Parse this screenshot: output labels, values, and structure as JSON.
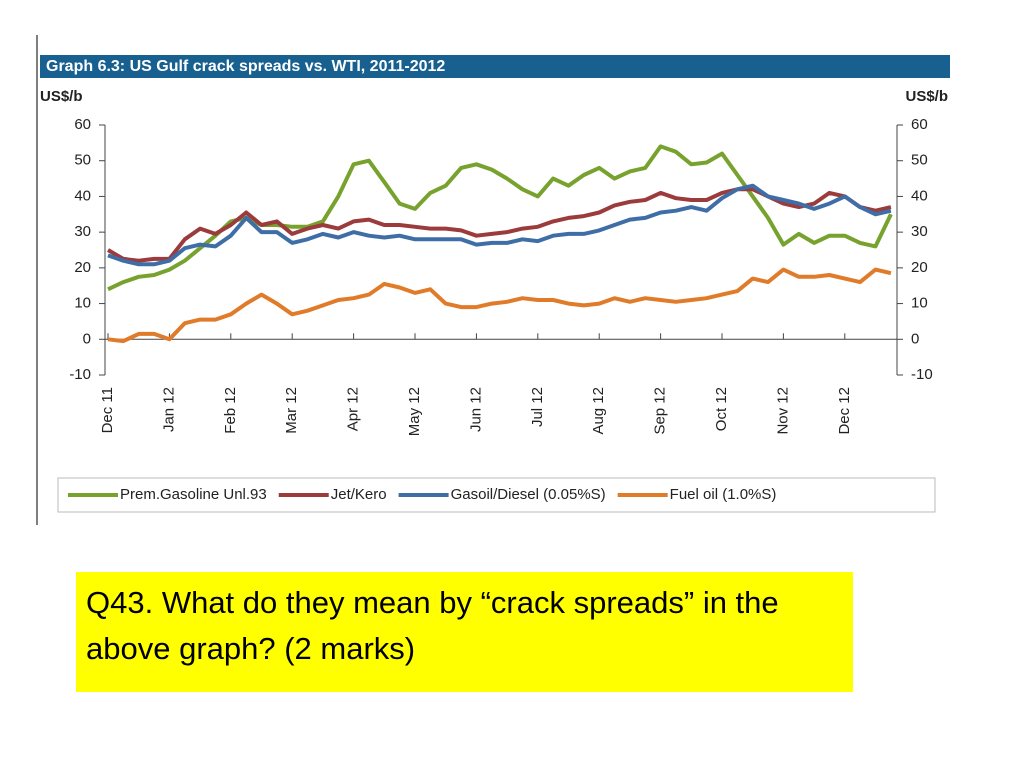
{
  "chart_data": {
    "type": "line",
    "title": "Graph 6.3: US Gulf crack spreads vs. WTI, 2011-2012",
    "ylabel": "US$/b",
    "y2label": "US$/b",
    "categories": [
      "Dec 11",
      null,
      null,
      null,
      "Jan 12",
      null,
      null,
      null,
      "Feb 12",
      null,
      null,
      null,
      "Mar 12",
      null,
      null,
      null,
      "Apr 12",
      null,
      null,
      null,
      "May 12",
      null,
      null,
      null,
      "Jun 12",
      null,
      null,
      null,
      "Jul 12",
      null,
      null,
      null,
      "Aug 12",
      null,
      null,
      null,
      "Sep 12",
      null,
      null,
      null,
      "Oct 12",
      null,
      null,
      null,
      "Nov 12",
      null,
      null,
      null,
      "Dec 12",
      null,
      null,
      null
    ],
    "ylim": [
      -10,
      60
    ],
    "yticks": [
      -10,
      0,
      10,
      20,
      30,
      40,
      50,
      60
    ],
    "y2lim": [
      -10,
      60
    ],
    "y2ticks": [
      -10,
      0,
      10,
      20,
      30,
      40,
      50,
      60
    ],
    "grid": false,
    "legend": "bottom",
    "series": [
      {
        "name": "Prem.Gasoline Unl.93",
        "color": "#77a22d",
        "values": [
          14,
          16,
          17.5,
          18,
          19.5,
          22,
          25.5,
          29,
          33,
          34,
          32,
          32,
          31.5,
          31.5,
          33,
          40,
          49,
          50,
          44,
          38,
          36.5,
          41,
          43,
          48,
          49,
          47.5,
          45,
          42,
          40,
          45,
          43,
          46,
          48,
          45,
          47,
          48,
          54,
          52.5,
          49,
          49.5,
          52,
          46,
          40,
          34,
          26.5,
          29.5,
          27,
          29,
          29,
          27,
          26,
          35
        ]
      },
      {
        "name": "Jet/Kero",
        "color": "#9b3b3b",
        "values": [
          25,
          22.5,
          22,
          22.5,
          22.5,
          28,
          31,
          29.5,
          32,
          35.5,
          32,
          33,
          29.5,
          31,
          32,
          31,
          33,
          33.5,
          32,
          32,
          31.5,
          31,
          31,
          30.5,
          29,
          29.5,
          30,
          31,
          31.5,
          33,
          34,
          34.5,
          35.5,
          37.5,
          38.5,
          39,
          41,
          39.5,
          39,
          39,
          41,
          42,
          42,
          40,
          38,
          37,
          38,
          41,
          40,
          37,
          36,
          37
        ]
      },
      {
        "name": "Gasoil/Diesel (0.05%S)",
        "color": "#3f6ea7",
        "values": [
          23.5,
          22,
          21,
          21,
          22,
          25.5,
          26.5,
          26,
          29,
          34,
          30,
          30,
          27,
          28,
          29.5,
          28.5,
          30,
          29,
          28.5,
          29,
          28,
          28,
          28,
          28,
          26.5,
          27,
          27,
          28,
          27.5,
          29,
          29.5,
          29.5,
          30.5,
          32,
          33.5,
          34,
          35.5,
          36,
          37,
          36,
          39.5,
          42,
          43,
          40,
          39,
          38,
          36.5,
          38,
          40,
          37,
          35,
          36
        ]
      },
      {
        "name": "Fuel oil (1.0%S)",
        "color": "#e07b2a",
        "values": [
          0,
          -0.5,
          1.5,
          1.5,
          0,
          4.5,
          5.5,
          5.5,
          7,
          10,
          12.5,
          10,
          7,
          8,
          9.5,
          11,
          11.5,
          12.5,
          15.5,
          14.5,
          13,
          14,
          10,
          9,
          9,
          10,
          10.5,
          11.5,
          11,
          11,
          10,
          9.5,
          10,
          11.5,
          10.5,
          11.5,
          11,
          10.5,
          11,
          11.5,
          12.5,
          13.5,
          17,
          16,
          19.5,
          17.5,
          17.5,
          18,
          17,
          16,
          19.5,
          18.5
        ]
      }
    ]
  },
  "question": "Q43.  What do they mean by “crack spreads” in the above graph?   (2 marks)"
}
